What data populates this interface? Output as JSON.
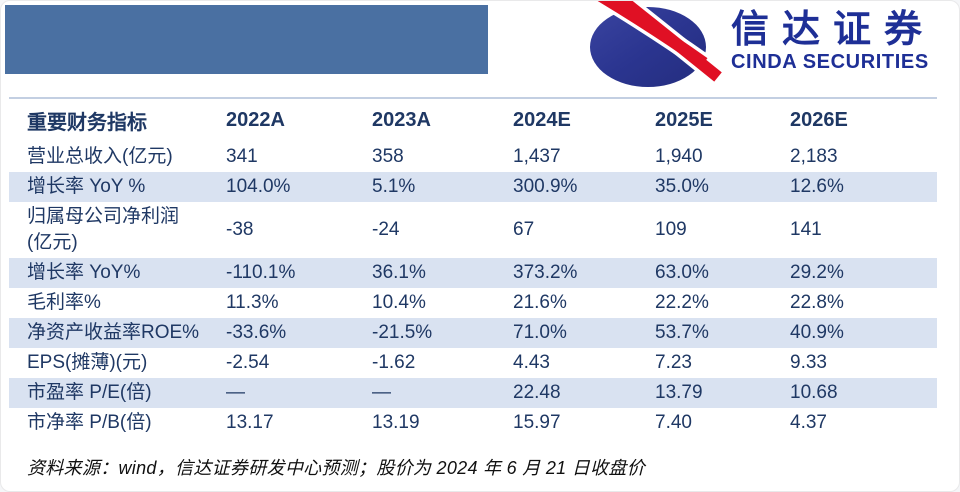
{
  "brand": {
    "name_cn": "信达证券",
    "name_en": "CINDA SECURITIES",
    "colors": {
      "banner_blue": "#4a70a2",
      "logo_blue": "#1e2f96",
      "logo_ellipse_navy": "#2b3590",
      "logo_swoosh_red": "#e01024"
    }
  },
  "table": {
    "title_header": "重要财务指标",
    "columns": [
      "2022A",
      "2023A",
      "2024E",
      "2025E",
      "2026E"
    ],
    "rows": [
      {
        "label": "营业总收入(亿元)",
        "values": [
          "341",
          "358",
          "1,437",
          "1,940",
          "2,183"
        ]
      },
      {
        "label": "增长率 YoY %",
        "values": [
          "104.0%",
          "5.1%",
          "300.9%",
          "35.0%",
          "12.6%"
        ]
      },
      {
        "label": "归属母公司净利润\n(亿元)",
        "values": [
          "-38",
          "-24",
          "67",
          "109",
          "141"
        ]
      },
      {
        "label": "增长率 YoY%",
        "values": [
          "-110.1%",
          "36.1%",
          "373.2%",
          "63.0%",
          "29.2%"
        ]
      },
      {
        "label": "毛利率%",
        "values": [
          "11.3%",
          "10.4%",
          "21.6%",
          "22.2%",
          "22.8%"
        ]
      },
      {
        "label": "净资产收益率ROE%",
        "values": [
          "-33.6%",
          "-21.5%",
          "71.0%",
          "53.7%",
          "40.9%"
        ]
      },
      {
        "label": "EPS(摊薄)(元)",
        "values": [
          "-2.54",
          "-1.62",
          "4.43",
          "7.23",
          "9.33"
        ]
      },
      {
        "label": "市盈率 P/E(倍)",
        "values": [
          "—",
          "—",
          "22.48",
          "13.79",
          "10.68"
        ]
      },
      {
        "label": "市净率 P/B(倍)",
        "values": [
          "13.17",
          "13.19",
          "15.97",
          "7.40",
          "4.37"
        ]
      }
    ],
    "stripe_color": "#d9e2f1",
    "text_color": "#1f3864"
  },
  "footer": {
    "source_note": "资料来源：wind，信达证券研发中心预测；股价为 2024 年 6 月 21 日收盘价"
  }
}
